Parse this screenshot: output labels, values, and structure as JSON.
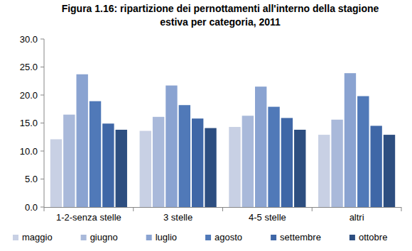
{
  "chart_data": {
    "type": "bar",
    "title": "Figura 1.16: ripartizione dei pernottamenti all'interno della stagione estiva per categoria, 2011",
    "categories": [
      "1-2-senza stelle",
      "3 stelle",
      "4-5 stelle",
      "altri"
    ],
    "series": [
      {
        "name": "maggio",
        "color": "#c8d0e4",
        "values": [
          12.1,
          13.6,
          14.3,
          12.9
        ]
      },
      {
        "name": "giugno",
        "color": "#a9b9da",
        "values": [
          16.5,
          16.1,
          16.3,
          15.6
        ]
      },
      {
        "name": "luglio",
        "color": "#8aa3d1",
        "values": [
          23.7,
          21.7,
          21.5,
          23.9
        ]
      },
      {
        "name": "agosto",
        "color": "#5079b8",
        "values": [
          18.9,
          18.2,
          17.9,
          19.8
        ]
      },
      {
        "name": "settembre",
        "color": "#3f67a7",
        "values": [
          14.9,
          15.8,
          15.9,
          14.5
        ]
      },
      {
        "name": "ottobre",
        "color": "#2d4e80",
        "values": [
          13.8,
          14.1,
          13.8,
          12.9
        ]
      }
    ],
    "ylim": [
      0,
      30
    ],
    "yticks": [
      {
        "value": 0,
        "label": "0.0"
      },
      {
        "value": 5,
        "label": "5.0"
      },
      {
        "value": 10,
        "label": "10.0"
      },
      {
        "value": 15,
        "label": "15.0"
      },
      {
        "value": 20,
        "label": "20.0"
      },
      {
        "value": 25,
        "label": "25.0"
      },
      {
        "value": 30,
        "label": "30.0"
      }
    ],
    "grid": false,
    "legend": "bottom"
  }
}
